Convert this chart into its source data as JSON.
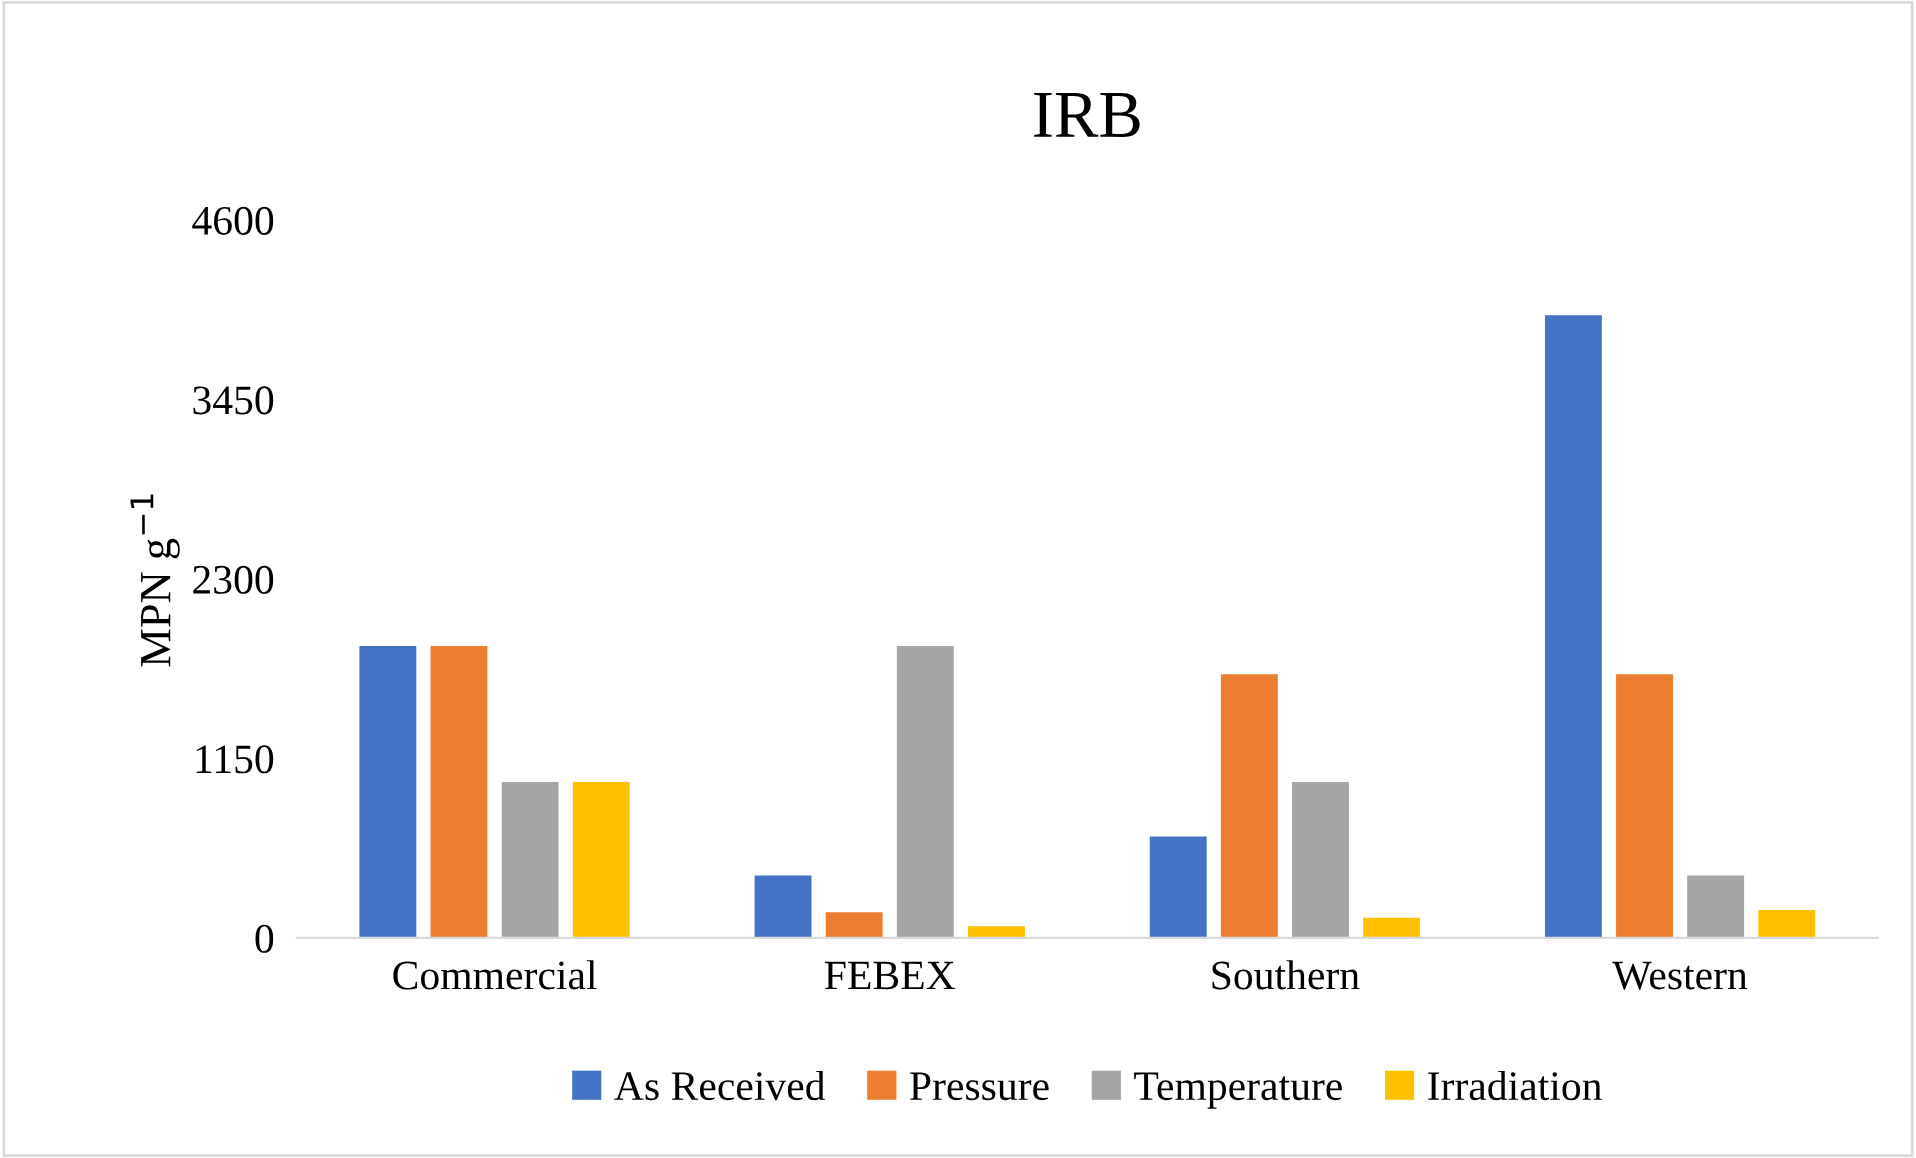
{
  "chart_data": {
    "type": "bar",
    "title": "IRB",
    "ylabel": "MPN g$^{−1}$",
    "categories": [
      "Commercial",
      "FEBEX",
      "Southern",
      "Western"
    ],
    "series": [
      {
        "name": "As Received",
        "color": "#4472c4",
        "values": [
          1870,
          400,
          650,
          3990
        ]
      },
      {
        "name": "Pressure",
        "color": "#ed7d31",
        "values": [
          1870,
          165,
          1690,
          1690
        ]
      },
      {
        "name": "Temperature",
        "color": "#a5a5a5",
        "values": [
          1000,
          1870,
          1000,
          400
        ]
      },
      {
        "name": "Irradiation",
        "color": "#ffc000",
        "values": [
          1000,
          75,
          130,
          180
        ]
      }
    ],
    "ylim": [
      0,
      4600
    ],
    "yticks": [
      0,
      1150,
      2300,
      3450,
      4600
    ],
    "grid": false,
    "legend": "bottom"
  }
}
